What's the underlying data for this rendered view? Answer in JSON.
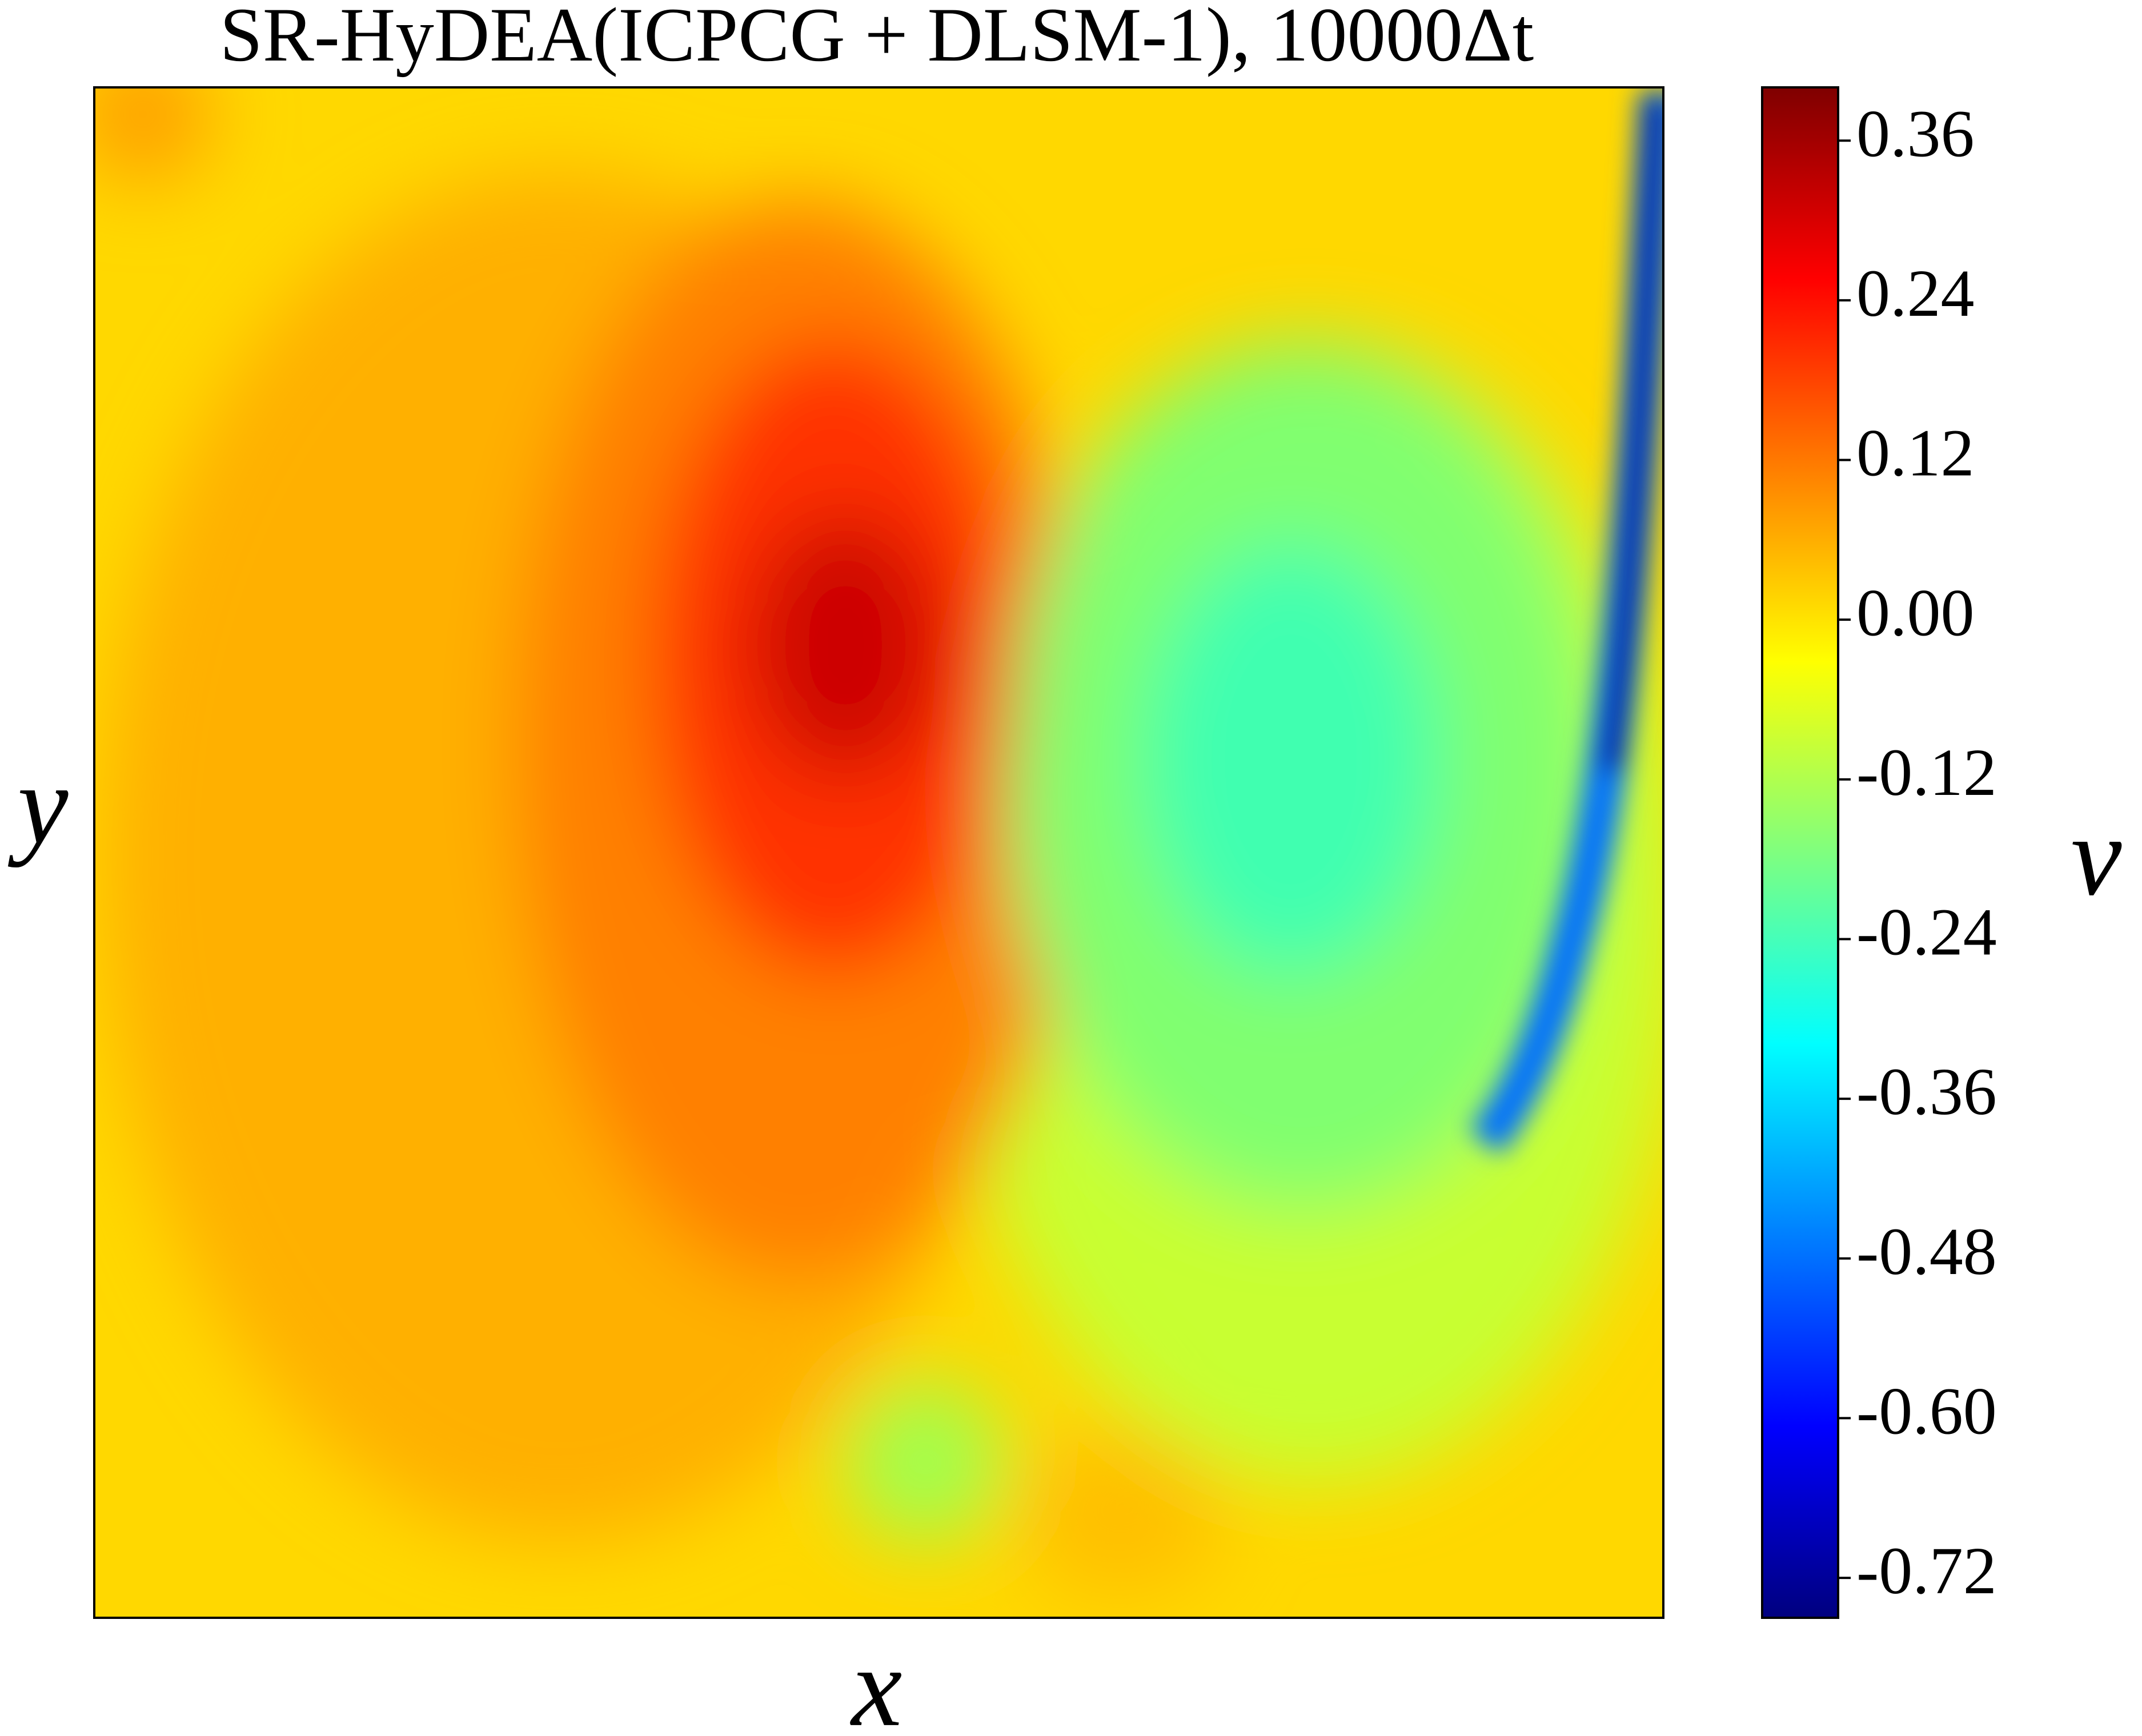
{
  "chart_data": {
    "type": "heatmap",
    "title": "SR-HyDEA(ICPCG + DLSM-1), 10000Δt",
    "x_label": "x",
    "y_label": "y",
    "colorbar_label": "v",
    "colormap": "jet",
    "clim": [
      -0.75,
      0.4
    ],
    "cticks": [
      0.36,
      0.24,
      0.12,
      {
        "value": 0,
        "label": "0.00"
      },
      -0.12,
      -0.24,
      -0.36,
      -0.48,
      {
        "value": -0.6,
        "label": "-0.60"
      },
      -0.72
    ]
  }
}
